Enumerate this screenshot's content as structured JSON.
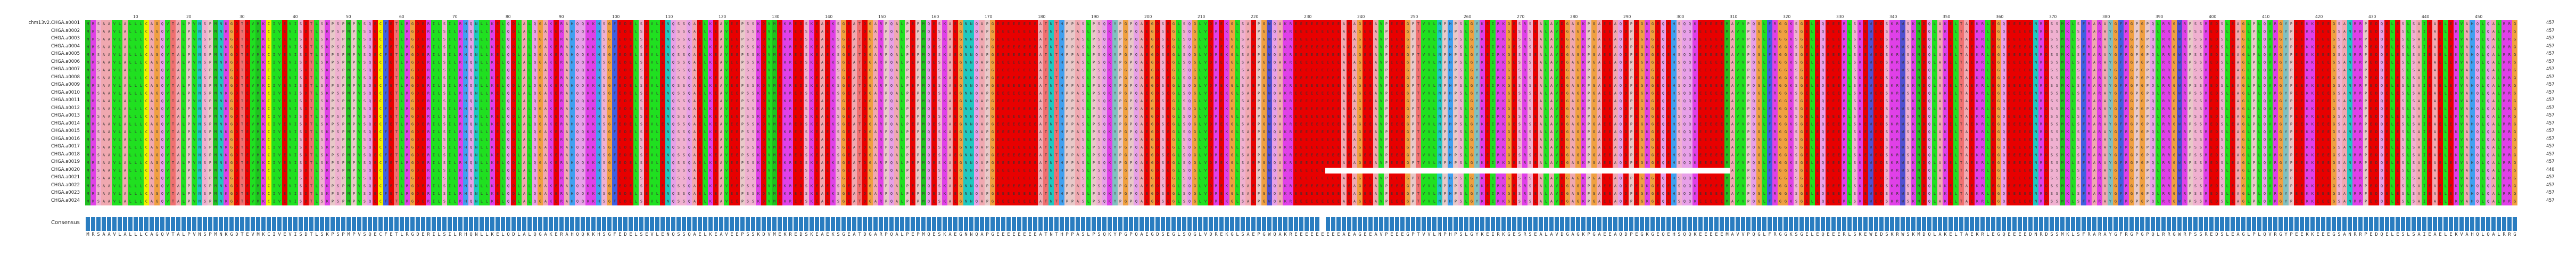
{
  "sequence_names": [
    "chm13v2.CHGA.a0001",
    "CHGA.a0002",
    "CHGA.a0003",
    "CHGA.a0004",
    "CHGA.a0005",
    "CHGA.a0006",
    "CHGA.a0007",
    "CHGA.a0008",
    "CHGA.a0009",
    "CHGA.a0010",
    "CHGA.a0011",
    "CHGA.a0012",
    "CHGA.a0013",
    "CHGA.a0014",
    "CHGA.a0015",
    "CHGA.a0016",
    "CHGA.a0017",
    "CHGA.a0018",
    "CHGA.a0019",
    "CHGA.a0020",
    "CHGA.a0021",
    "CHGA.a0022",
    "CHGA.a0023",
    "CHGA.a0024"
  ],
  "sequence_end_positions": [
    "457",
    "457",
    "457",
    "457",
    "457",
    "457",
    "457",
    "457",
    "457",
    "457",
    "457",
    "457",
    "457",
    "457",
    "457",
    "457",
    "457",
    "457",
    "457",
    "440",
    "457",
    "457",
    "457",
    "457"
  ],
  "ruler_ticks": [
    "10",
    "20",
    "30",
    "40",
    "50",
    "60",
    "70",
    "80",
    "90",
    "100",
    "110",
    "120",
    "130",
    "140",
    "150",
    "160",
    "170",
    "180",
    "190",
    "200",
    "210",
    "220",
    "230",
    "240",
    "250",
    "260",
    "270",
    "280",
    "290",
    "300",
    "310",
    "320",
    "330",
    "340",
    "350",
    "360",
    "370",
    "380",
    "390",
    "400",
    "410",
    "420",
    "430",
    "440",
    "450"
  ],
  "consensus_label": "Consensus",
  "consensus_sequence": "MRSAAVLALLLCAGQVTALPVNSPMNKGDTEVMKCIVEVISDTLSKPSPMPVSQECFETLRGDERILSILRHQNLLKELQDLALQGAKERAHQQKKHSGFEDELSEVLENQSSQAELKEAVEEPSSKDVMEKREDSKEAEKSGEATDGARPQALPEPMQESKAEGNNQAPGEEEEEEEEATNTHPPASLPSQKYPGPQAEGDSEGLSQGLVDREKGLSAEPGWQAKREEEEEEEEEAEAGEEAVPEEEGPTVVLNPHPSLGYKEIRKGESRSEALAVDGAGKPGAEEAQDPEGKGEQEHSQQKEEEEEMAVVPQGLFRGGKSGELEQEEERLSKEWEDSKRWSKMDQLAKELTAEKRLEGQEEEEDNRDSSMKLSFRARAYGFRGPGPQLRRGWRPSSREDSLEAGLPLQVRGYPEEKKEEEGSANRRPEDQELESLSAIEAELEKVAHQLQALRRG",
  "colors": {
    "A": "#f0a8b0",
    "R": "#e040e8",
    "N": "#20c8c0",
    "D": "#e80000",
    "C": "#f0f000",
    "Q": "#e8a0e8",
    "E": "#e80000",
    "G": "#f0a040",
    "H": "#40a0f0",
    "I": "#20e020",
    "L": "#20e020",
    "K": "#e040e8",
    "M": "#20c020",
    "F": "#4060e0",
    "P": "#e8c8c8",
    "S": "#f0b0d0",
    "T": "#f07070",
    "W": "#5050d0",
    "Y": "#80c0c0",
    "V": "#20e020",
    "-": "#ffffff",
    "consensus_bar": "#2a7dc0"
  }
}
